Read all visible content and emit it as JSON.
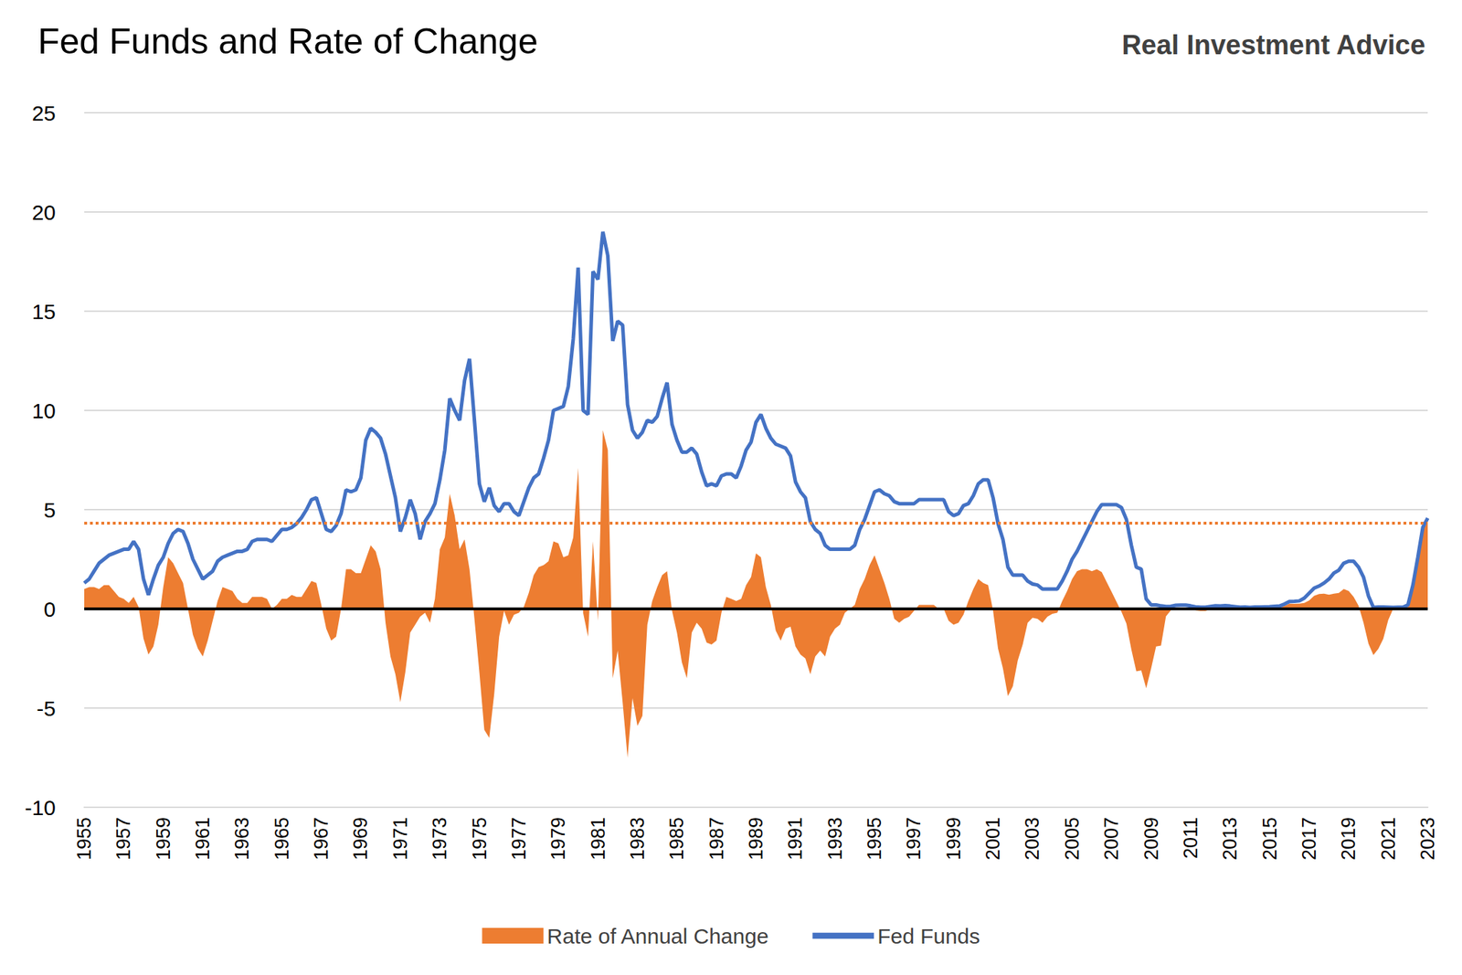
{
  "chart_data": {
    "type": "line",
    "title": "Fed Funds and Rate of Change",
    "source": "Real Investment Advice",
    "x": [
      1955,
      1955.25,
      1955.5,
      1955.75,
      1956,
      1956.25,
      1956.5,
      1956.75,
      1957,
      1957.25,
      1957.5,
      1957.75,
      1958,
      1958.25,
      1958.5,
      1958.75,
      1959,
      1959.25,
      1959.5,
      1959.75,
      1960,
      1960.25,
      1960.5,
      1960.75,
      1961,
      1961.25,
      1961.5,
      1961.75,
      1962,
      1962.25,
      1962.5,
      1962.75,
      1963,
      1963.25,
      1963.5,
      1963.75,
      1964,
      1964.25,
      1964.5,
      1964.75,
      1965,
      1965.25,
      1965.5,
      1965.75,
      1966,
      1966.25,
      1966.5,
      1966.75,
      1967,
      1967.25,
      1967.5,
      1967.75,
      1968,
      1968.25,
      1968.5,
      1968.75,
      1969,
      1969.25,
      1969.5,
      1969.75,
      1970,
      1970.25,
      1970.5,
      1970.75,
      1971,
      1971.25,
      1971.5,
      1971.75,
      1972,
      1972.25,
      1972.5,
      1972.75,
      1973,
      1973.25,
      1973.5,
      1973.75,
      1974,
      1974.25,
      1974.5,
      1974.75,
      1975,
      1975.25,
      1975.5,
      1975.75,
      1976,
      1976.25,
      1976.5,
      1976.75,
      1977,
      1977.25,
      1977.5,
      1977.75,
      1978,
      1978.25,
      1978.5,
      1978.75,
      1979,
      1979.25,
      1979.5,
      1979.75,
      1980,
      1980.25,
      1980.5,
      1980.75,
      1981,
      1981.25,
      1981.5,
      1981.75,
      1982,
      1982.25,
      1982.5,
      1982.75,
      1983,
      1983.25,
      1983.5,
      1983.75,
      1984,
      1984.25,
      1984.5,
      1984.75,
      1985,
      1985.25,
      1985.5,
      1985.75,
      1986,
      1986.25,
      1986.5,
      1986.75,
      1987,
      1987.25,
      1987.5,
      1987.75,
      1988,
      1988.25,
      1988.5,
      1988.75,
      1989,
      1989.25,
      1989.5,
      1989.75,
      1990,
      1990.25,
      1990.5,
      1990.75,
      1991,
      1991.25,
      1991.5,
      1991.75,
      1992,
      1992.25,
      1992.5,
      1992.75,
      1993,
      1993.25,
      1993.5,
      1993.75,
      1994,
      1994.25,
      1994.5,
      1994.75,
      1995,
      1995.25,
      1995.5,
      1995.75,
      1996,
      1996.25,
      1996.5,
      1996.75,
      1997,
      1997.25,
      1997.5,
      1997.75,
      1998,
      1998.25,
      1998.5,
      1998.75,
      1999,
      1999.25,
      1999.5,
      1999.75,
      2000,
      2000.25,
      2000.5,
      2000.75,
      2001,
      2001.25,
      2001.5,
      2001.75,
      2002,
      2002.25,
      2002.5,
      2002.75,
      2003,
      2003.25,
      2003.5,
      2003.75,
      2004,
      2004.25,
      2004.5,
      2004.75,
      2005,
      2005.25,
      2005.5,
      2005.75,
      2006,
      2006.25,
      2006.5,
      2006.75,
      2007,
      2007.25,
      2007.5,
      2007.75,
      2008,
      2008.25,
      2008.5,
      2008.75,
      2009,
      2009.25,
      2009.5,
      2009.75,
      2010,
      2010.25,
      2010.5,
      2010.75,
      2011,
      2011.25,
      2011.5,
      2011.75,
      2012,
      2012.25,
      2012.5,
      2012.75,
      2013,
      2013.25,
      2013.5,
      2013.75,
      2014,
      2014.25,
      2014.5,
      2014.75,
      2015,
      2015.25,
      2015.5,
      2015.75,
      2016,
      2016.25,
      2016.5,
      2016.75,
      2017,
      2017.25,
      2017.5,
      2017.75,
      2018,
      2018.25,
      2018.5,
      2018.75,
      2019,
      2019.25,
      2019.5,
      2019.75,
      2020,
      2020.25,
      2020.5,
      2020.75,
      2021,
      2021.25,
      2021.5,
      2021.75,
      2022,
      2022.25,
      2022.5,
      2022.75,
      2023
    ],
    "series": [
      {
        "name": "Rate of Annual Change",
        "type": "area",
        "color": "#ed7d31",
        "values": [
          1.0,
          1.1,
          1.1,
          1.0,
          1.2,
          1.2,
          0.9,
          0.6,
          0.5,
          0.3,
          0.6,
          0.1,
          -1.5,
          -2.3,
          -1.9,
          -0.8,
          1.1,
          2.6,
          2.3,
          1.8,
          1.3,
          0.0,
          -1.3,
          -2.0,
          -2.4,
          -1.6,
          -0.6,
          0.4,
          1.1,
          1.0,
          0.9,
          0.5,
          0.3,
          0.3,
          0.6,
          0.6,
          0.6,
          0.5,
          0.0,
          0.2,
          0.5,
          0.5,
          0.7,
          0.6,
          0.6,
          1.0,
          1.4,
          1.3,
          0.2,
          -1.0,
          -1.6,
          -1.4,
          0.0,
          2.0,
          2.0,
          1.8,
          1.8,
          2.5,
          3.2,
          2.9,
          2.0,
          -0.7,
          -2.4,
          -3.3,
          -4.7,
          -3.2,
          -1.2,
          -0.8,
          -0.4,
          -0.2,
          -0.7,
          0.5,
          3.0,
          3.6,
          5.8,
          4.7,
          3.0,
          3.5,
          2.0,
          -0.5,
          -3.2,
          -6.1,
          -6.5,
          -4.3,
          -1.4,
          -0.1,
          -0.8,
          -0.3,
          -0.2,
          0.1,
          0.8,
          1.7,
          2.1,
          2.2,
          2.4,
          3.4,
          3.3,
          2.6,
          2.7,
          3.6,
          7.1,
          -0.2,
          -1.4,
          3.4,
          -0.6,
          9.0,
          8.0,
          -3.5,
          -2.1,
          -4.7,
          -7.5,
          -4.5,
          -5.9,
          -5.4,
          -0.8,
          0.4,
          1.1,
          1.7,
          1.9,
          -0.1,
          -1.2,
          -2.7,
          -3.5,
          -1.2,
          -0.7,
          -1.0,
          -1.7,
          -1.8,
          -1.6,
          -0.2,
          0.6,
          0.5,
          0.4,
          0.5,
          1.2,
          1.6,
          2.8,
          2.6,
          1.1,
          0.2,
          -1.1,
          -1.6,
          -1.0,
          -0.9,
          -1.9,
          -2.3,
          -2.5,
          -3.3,
          -2.4,
          -2.1,
          -2.4,
          -1.4,
          -1.0,
          -0.8,
          -0.2,
          0.0,
          0.2,
          1.0,
          1.5,
          2.2,
          2.7,
          2.0,
          1.3,
          0.5,
          -0.5,
          -0.7,
          -0.5,
          -0.4,
          -0.1,
          0.2,
          0.2,
          0.2,
          0.2,
          0.0,
          0.0,
          -0.6,
          -0.8,
          -0.7,
          -0.3,
          0.4,
          1.0,
          1.5,
          1.3,
          1.2,
          -0.1,
          -2.0,
          -3.0,
          -4.4,
          -3.9,
          -2.6,
          -1.8,
          -0.7,
          -0.45,
          -0.5,
          -0.7,
          -0.4,
          -0.25,
          -0.2,
          0.4,
          0.9,
          1.5,
          1.9,
          2.0,
          2.0,
          1.9,
          2.0,
          1.85,
          1.35,
          0.85,
          0.35,
          -0.15,
          -0.75,
          -2.05,
          -3.15,
          -3.1,
          -4.0,
          -3.0,
          -1.9,
          -1.85,
          -0.38,
          -0.07,
          -0.02,
          0.04,
          0.07,
          0.02,
          -0.08,
          -0.11,
          -0.11,
          -0.03,
          0.05,
          0.06,
          0.08,
          0.02,
          -0.04,
          -0.06,
          -0.07,
          -0.07,
          -0.02,
          0.01,
          0.01,
          0.04,
          0.04,
          0.05,
          0.14,
          0.26,
          0.25,
          0.26,
          0.3,
          0.42,
          0.66,
          0.75,
          0.76,
          0.71,
          0.76,
          0.8,
          1.0,
          0.9,
          0.6,
          0.15,
          -0.7,
          -1.75,
          -2.33,
          -2.01,
          -1.51,
          -0.57,
          0.0,
          -0.01,
          -0.01,
          0.12,
          1.13,
          2.52,
          4.02,
          4.33
        ]
      },
      {
        "name": "Fed Funds",
        "type": "line",
        "color": "#4472c4",
        "values": [
          1.3,
          1.5,
          1.9,
          2.3,
          2.5,
          2.7,
          2.8,
          2.9,
          3.0,
          3.0,
          3.4,
          3.0,
          1.5,
          0.7,
          1.5,
          2.2,
          2.6,
          3.3,
          3.8,
          4.0,
          3.9,
          3.3,
          2.5,
          2.0,
          1.5,
          1.7,
          1.9,
          2.4,
          2.6,
          2.7,
          2.8,
          2.9,
          2.9,
          3.0,
          3.4,
          3.5,
          3.5,
          3.5,
          3.4,
          3.7,
          4.0,
          4.0,
          4.1,
          4.3,
          4.6,
          5.0,
          5.5,
          5.6,
          4.8,
          4.0,
          3.9,
          4.2,
          4.8,
          6.0,
          5.9,
          6.0,
          6.6,
          8.5,
          9.1,
          8.9,
          8.6,
          7.8,
          6.7,
          5.6,
          3.9,
          4.6,
          5.5,
          4.8,
          3.5,
          4.4,
          4.8,
          5.3,
          6.5,
          8.0,
          10.6,
          10.0,
          9.5,
          11.5,
          12.6,
          9.5,
          6.3,
          5.4,
          6.1,
          5.2,
          4.9,
          5.3,
          5.3,
          4.9,
          4.7,
          5.4,
          6.1,
          6.6,
          6.8,
          7.6,
          8.5,
          10.0,
          10.1,
          10.2,
          11.2,
          13.6,
          17.2,
          10.0,
          9.8,
          17.0,
          16.6,
          19.0,
          17.8,
          13.5,
          14.5,
          14.3,
          10.3,
          9.0,
          8.6,
          8.9,
          9.5,
          9.4,
          9.7,
          10.6,
          11.4,
          9.3,
          8.5,
          7.9,
          7.9,
          8.1,
          7.8,
          6.9,
          6.2,
          6.3,
          6.2,
          6.7,
          6.8,
          6.8,
          6.6,
          7.2,
          8.0,
          8.4,
          9.4,
          9.8,
          9.1,
          8.6,
          8.3,
          8.2,
          8.1,
          7.7,
          6.4,
          5.9,
          5.6,
          4.4,
          4.0,
          3.8,
          3.2,
          3.0,
          3.0,
          3.0,
          3.0,
          3.0,
          3.2,
          4.0,
          4.5,
          5.2,
          5.9,
          6.0,
          5.8,
          5.7,
          5.4,
          5.3,
          5.3,
          5.3,
          5.3,
          5.5,
          5.5,
          5.5,
          5.5,
          5.5,
          5.5,
          4.9,
          4.7,
          4.8,
          5.2,
          5.3,
          5.7,
          6.3,
          6.5,
          6.5,
          5.6,
          4.3,
          3.5,
          2.1,
          1.7,
          1.7,
          1.7,
          1.4,
          1.25,
          1.2,
          1.0,
          1.0,
          1.0,
          1.0,
          1.4,
          1.9,
          2.5,
          2.9,
          3.4,
          3.9,
          4.4,
          4.9,
          5.25,
          5.25,
          5.25,
          5.25,
          5.1,
          4.5,
          3.2,
          2.1,
          2.0,
          0.5,
          0.2,
          0.2,
          0.15,
          0.12,
          0.13,
          0.18,
          0.19,
          0.19,
          0.15,
          0.1,
          0.08,
          0.08,
          0.12,
          0.15,
          0.14,
          0.16,
          0.14,
          0.11,
          0.08,
          0.09,
          0.07,
          0.09,
          0.09,
          0.1,
          0.11,
          0.13,
          0.14,
          0.24,
          0.37,
          0.38,
          0.4,
          0.54,
          0.79,
          1.04,
          1.15,
          1.3,
          1.5,
          1.8,
          1.95,
          2.3,
          2.4,
          2.4,
          2.1,
          1.6,
          0.65,
          0.07,
          0.09,
          0.09,
          0.08,
          0.07,
          0.08,
          0.08,
          0.2,
          1.2,
          2.6,
          4.1,
          4.57
        ]
      }
    ],
    "reference_line": {
      "value": 4.33,
      "color": "#ed7d31",
      "line_style": "dotted"
    },
    "baseline": {
      "value": 0,
      "color": "#000000",
      "line_style": "solid"
    },
    "xlim": [
      1955,
      2023
    ],
    "xticks": [
      1955,
      1957,
      1959,
      1961,
      1963,
      1965,
      1967,
      1969,
      1971,
      1973,
      1975,
      1977,
      1979,
      1981,
      1983,
      1985,
      1987,
      1989,
      1991,
      1993,
      1995,
      1997,
      1999,
      2001,
      2003,
      2005,
      2007,
      2009,
      2011,
      2013,
      2015,
      2017,
      2019,
      2021,
      2023
    ],
    "ylim": [
      -10,
      25
    ],
    "yticks": [
      -10,
      -5,
      0,
      5,
      10,
      15,
      20,
      25
    ],
    "grid": true,
    "legend": "bottom"
  }
}
